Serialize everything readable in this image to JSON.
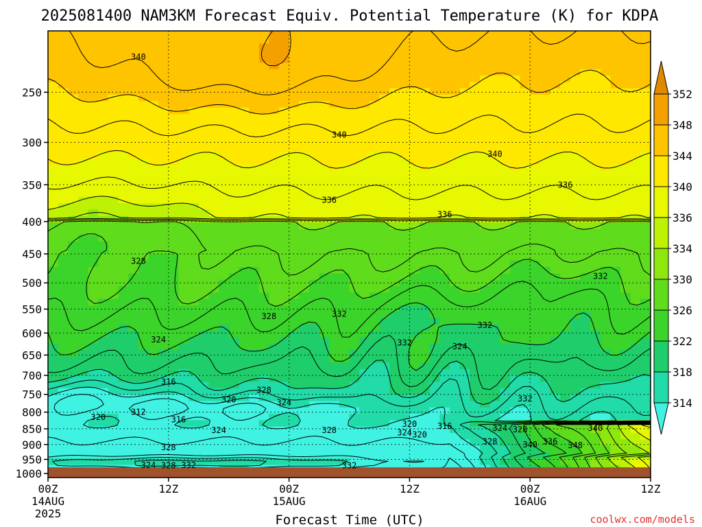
{
  "chart_data": {
    "type": "heatmap",
    "title": "2025081400 NAM3KM Forecast Equiv. Potential Temperature (K) for KDPA",
    "xlabel": "Forecast Time (UTC)",
    "ylabel": "",
    "credit": "coolwx.com/models",
    "x_hours_range": [
      0,
      60
    ],
    "y_pressure_range": [
      1015,
      200
    ],
    "y_scale": "log",
    "y_ticks": [
      250,
      300,
      350,
      400,
      450,
      500,
      550,
      600,
      650,
      700,
      750,
      800,
      850,
      900,
      950,
      1000
    ],
    "x_ticks": [
      {
        "hour": 0,
        "label": "00Z",
        "date": "14AUG",
        "year": "2025"
      },
      {
        "hour": 12,
        "label": "12Z",
        "date": "",
        "year": ""
      },
      {
        "hour": 24,
        "label": "00Z",
        "date": "15AUG",
        "year": ""
      },
      {
        "hour": 36,
        "label": "12Z",
        "date": "",
        "year": ""
      },
      {
        "hour": 48,
        "label": "00Z",
        "date": "16AUG",
        "year": ""
      },
      {
        "hour": 60,
        "label": "12Z",
        "date": "",
        "year": ""
      }
    ],
    "grid": true,
    "ground_pressure": 978,
    "colorbar": {
      "position": "right",
      "levels": [
        314,
        318,
        322,
        326,
        330,
        334,
        336,
        340,
        344,
        348,
        352
      ],
      "colors": [
        "#3ff2e2",
        "#21dba8",
        "#1fce6a",
        "#3bd42a",
        "#5fdc1c",
        "#8ee810",
        "#bdf206",
        "#e8f800",
        "#ffe800",
        "#ffc400",
        "#f4a000",
        "#e08800"
      ],
      "extend": "both"
    },
    "contour_labels": [
      {
        "text": "340",
        "hour": 9.0,
        "p": 220
      },
      {
        "text": "340",
        "hour": 29.0,
        "p": 292
      },
      {
        "text": "340",
        "hour": 44.5,
        "p": 313
      },
      {
        "text": "336",
        "hour": 28.0,
        "p": 370
      },
      {
        "text": "336",
        "hour": 39.5,
        "p": 390
      },
      {
        "text": "336",
        "hour": 51.5,
        "p": 350
      },
      {
        "text": "328",
        "hour": 9.0,
        "p": 462
      },
      {
        "text": "332",
        "hour": 29.0,
        "p": 560
      },
      {
        "text": "332",
        "hour": 43.5,
        "p": 583
      },
      {
        "text": "332",
        "hour": 55.0,
        "p": 488
      },
      {
        "text": "328",
        "hour": 22.0,
        "p": 565
      },
      {
        "text": "324",
        "hour": 11.0,
        "p": 615
      },
      {
        "text": "332",
        "hour": 35.5,
        "p": 622
      },
      {
        "text": "324",
        "hour": 41.0,
        "p": 630
      },
      {
        "text": "316",
        "hour": 12.0,
        "p": 717
      },
      {
        "text": "320",
        "hour": 18.0,
        "p": 765
      },
      {
        "text": "328",
        "hour": 21.5,
        "p": 738
      },
      {
        "text": "324",
        "hour": 23.5,
        "p": 772
      },
      {
        "text": "332",
        "hour": 47.5,
        "p": 762
      },
      {
        "text": "320",
        "hour": 5.0,
        "p": 815
      },
      {
        "text": "312",
        "hour": 9.0,
        "p": 800
      },
      {
        "text": "316",
        "hour": 13.0,
        "p": 822
      },
      {
        "text": "324",
        "hour": 17.0,
        "p": 855
      },
      {
        "text": "328",
        "hour": 28.0,
        "p": 855
      },
      {
        "text": "320",
        "hour": 36.0,
        "p": 835
      },
      {
        "text": "324",
        "hour": 35.5,
        "p": 862
      },
      {
        "text": "320",
        "hour": 37.0,
        "p": 868
      },
      {
        "text": "316",
        "hour": 39.5,
        "p": 842
      },
      {
        "text": "324",
        "hour": 45.0,
        "p": 848
      },
      {
        "text": "328",
        "hour": 47.0,
        "p": 852
      },
      {
        "text": "340",
        "hour": 54.5,
        "p": 848
      },
      {
        "text": "328",
        "hour": 44.0,
        "p": 890
      },
      {
        "text": "340",
        "hour": 48.0,
        "p": 900
      },
      {
        "text": "336",
        "hour": 50.0,
        "p": 890
      },
      {
        "text": "348",
        "hour": 52.5,
        "p": 903
      },
      {
        "text": "328",
        "hour": 12.0,
        "p": 910
      },
      {
        "text": "324",
        "hour": 10.0,
        "p": 970
      },
      {
        "text": "328",
        "hour": 12.0,
        "p": 972
      },
      {
        "text": "332",
        "hour": 14.0,
        "p": 970
      },
      {
        "text": "332",
        "hour": 30.0,
        "p": 972
      }
    ]
  }
}
